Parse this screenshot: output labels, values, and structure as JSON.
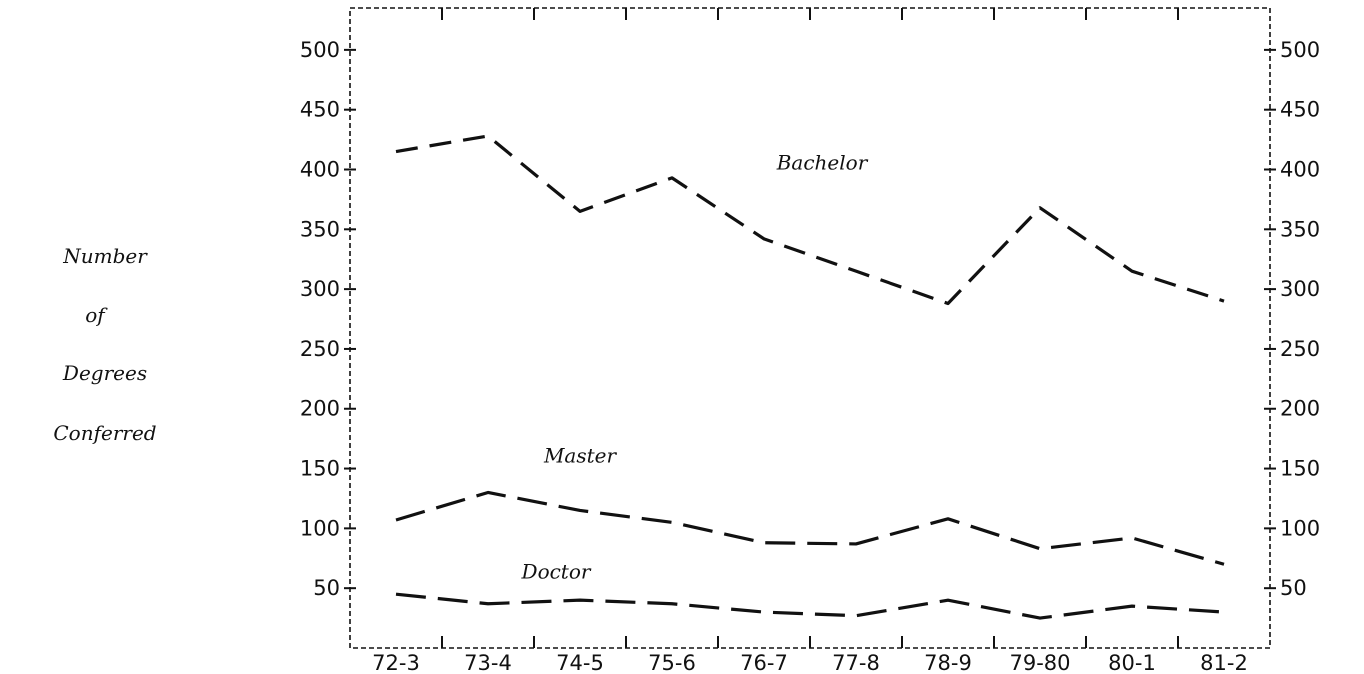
{
  "chart_data": {
    "type": "line",
    "title": "",
    "xlabel": "",
    "ylabel_lines": [
      "Number",
      "of",
      "Degrees",
      "Conferred"
    ],
    "categories": [
      "72-3",
      "73-4",
      "74-5",
      "75-6",
      "76-7",
      "77-8",
      "78-9",
      "79-80",
      "80-1",
      "81-2"
    ],
    "yticks": [
      50,
      100,
      150,
      200,
      250,
      300,
      350,
      400,
      450,
      500
    ],
    "ylim": [
      0,
      535
    ],
    "grid": false,
    "legend": "none",
    "series": [
      {
        "name": "Bachelor",
        "values": [
          415,
          428,
          365,
          393,
          342,
          315,
          288,
          368,
          315,
          290
        ],
        "dash": "22 12"
      },
      {
        "name": "Master",
        "values": [
          107,
          130,
          115,
          105,
          88,
          87,
          108,
          83,
          92,
          70
        ],
        "dash": "30 12"
      },
      {
        "name": "Doctor",
        "values": [
          45,
          37,
          40,
          37,
          30,
          27,
          40,
          25,
          35,
          30
        ],
        "dash": "30 12"
      }
    ]
  }
}
